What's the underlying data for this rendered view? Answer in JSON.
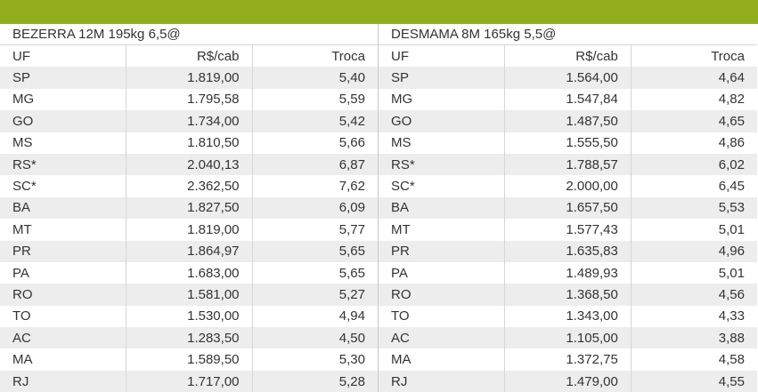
{
  "header_bar": {
    "color": "#92ad1c"
  },
  "tables": [
    {
      "title": "BEZERRA 12M 195kg 6,5@",
      "columns": [
        "UF",
        "R$/cab",
        "Troca"
      ],
      "rows": [
        [
          "SP",
          "1.819,00",
          "5,40"
        ],
        [
          "MG",
          "1.795,58",
          "5,59"
        ],
        [
          "GO",
          "1.734,00",
          "5,42"
        ],
        [
          "MS",
          "1.810,50",
          "5,66"
        ],
        [
          "RS*",
          "2.040,13",
          "6,87"
        ],
        [
          "SC*",
          "2.362,50",
          "7,62"
        ],
        [
          "BA",
          "1.827,50",
          "6,09"
        ],
        [
          "MT",
          "1.819,00",
          "5,77"
        ],
        [
          "PR",
          "1.864,97",
          "5,65"
        ],
        [
          "PA",
          "1.683,00",
          "5,65"
        ],
        [
          "RO",
          "1.581,00",
          "5,27"
        ],
        [
          "TO",
          "1.530,00",
          "4,94"
        ],
        [
          "AC",
          "1.283,50",
          "4,50"
        ],
        [
          "MA",
          "1.589,50",
          "5,30"
        ],
        [
          "RJ",
          "1.717,00",
          "5,28"
        ]
      ]
    },
    {
      "title": "DESMAMA 8M 165kg 5,5@",
      "columns": [
        "UF",
        "R$/cab",
        "Troca"
      ],
      "rows": [
        [
          "SP",
          "1.564,00",
          "4,64"
        ],
        [
          "MG",
          "1.547,84",
          "4,82"
        ],
        [
          "GO",
          "1.487,50",
          "4,65"
        ],
        [
          "MS",
          "1.555,50",
          "4,86"
        ],
        [
          "RS*",
          "1.788,57",
          "6,02"
        ],
        [
          "SC*",
          "2.000,00",
          "6,45"
        ],
        [
          "BA",
          "1.657,50",
          "5,53"
        ],
        [
          "MT",
          "1.577,43",
          "5,01"
        ],
        [
          "PR",
          "1.635,83",
          "4,96"
        ],
        [
          "PA",
          "1.489,93",
          "5,01"
        ],
        [
          "RO",
          "1.368,50",
          "4,56"
        ],
        [
          "TO",
          "1.343,00",
          "4,33"
        ],
        [
          "AC",
          "1.105,00",
          "3,88"
        ],
        [
          "MA",
          "1.372,75",
          "4,58"
        ],
        [
          "RJ",
          "1.479,00",
          "4,55"
        ]
      ]
    }
  ]
}
